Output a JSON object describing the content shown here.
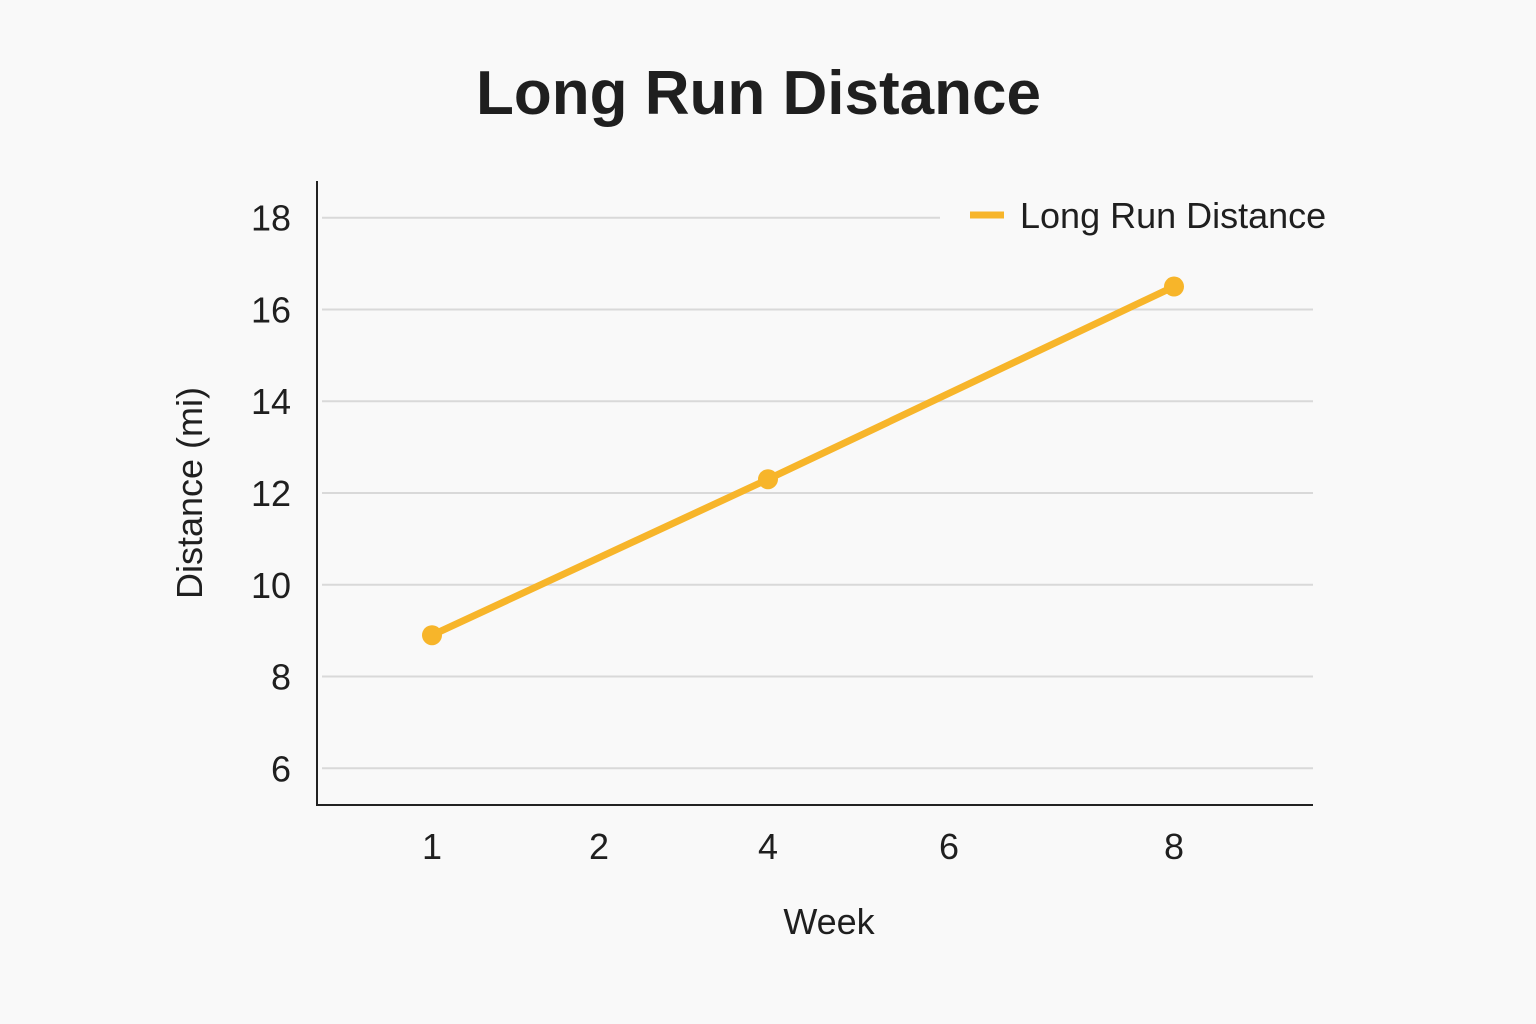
{
  "chart_data": {
    "type": "line",
    "title": "Long Run Distance",
    "xlabel": "Week",
    "ylabel": "Distance (mi)",
    "x_ticks": [
      "1",
      "2",
      "4",
      "6",
      "8"
    ],
    "y_ticks": [
      6,
      8,
      10,
      12,
      14,
      16,
      18
    ],
    "ylim": [
      5.2,
      18.8
    ],
    "grid": "horizontal",
    "legend_position": "top-right",
    "series": [
      {
        "name": "Long Run Distance",
        "color": "#f7b52a",
        "points": [
          {
            "x": "1",
            "y": 8.9
          },
          {
            "x": "4",
            "y": 12.3
          },
          {
            "x": "8",
            "y": 16.5
          }
        ]
      }
    ]
  }
}
